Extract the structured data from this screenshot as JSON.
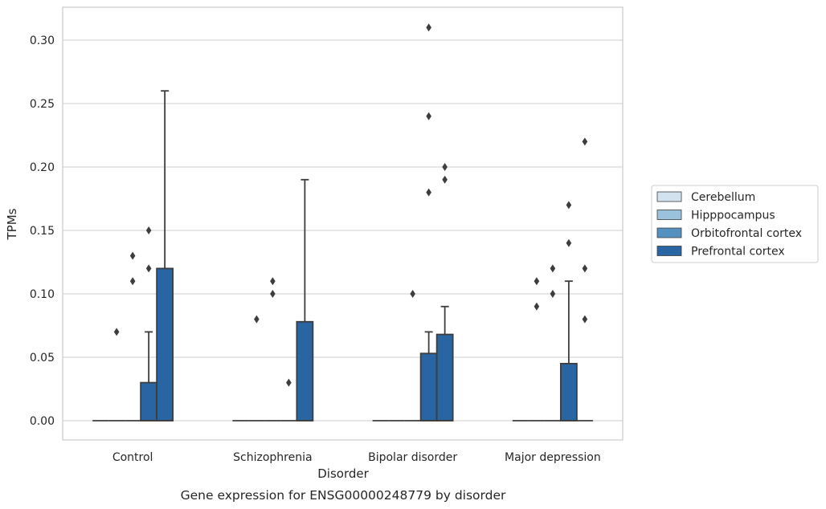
{
  "chart_data": {
    "type": "box",
    "caption": "Gene expression for ENSG00000248779 by disorder",
    "xlabel": "Disorder",
    "ylabel": "TPMs",
    "ylim": [
      -0.015,
      0.325
    ],
    "yticks": [
      "0.00",
      "0.05",
      "0.10",
      "0.15",
      "0.20",
      "0.25",
      "0.30"
    ],
    "grid": true,
    "legend_placement": "right",
    "categories": [
      "Control",
      "Schizophrenia",
      "Bipolar disorder",
      "Major depression"
    ],
    "series": [
      {
        "name": "Cerebellum",
        "color": "#d2e2ef",
        "boxes": [
          {
            "q1": 0,
            "median": 0,
            "q3": 0,
            "whisker_low": 0,
            "whisker_high": 0,
            "outliers": []
          },
          {
            "q1": 0,
            "median": 0,
            "q3": 0,
            "whisker_low": 0,
            "whisker_high": 0,
            "outliers": []
          },
          {
            "q1": 0,
            "median": 0,
            "q3": 0,
            "whisker_low": 0,
            "whisker_high": 0,
            "outliers": []
          },
          {
            "q1": 0,
            "median": 0,
            "q3": 0,
            "whisker_low": 0,
            "whisker_high": 0,
            "outliers": []
          }
        ]
      },
      {
        "name": "Hipppocampus",
        "color": "#9bc2dd",
        "boxes": [
          {
            "q1": 0,
            "median": 0,
            "q3": 0,
            "whisker_low": 0,
            "whisker_high": 0,
            "outliers": [
              0.07
            ]
          },
          {
            "q1": 0,
            "median": 0,
            "q3": 0,
            "whisker_low": 0,
            "whisker_high": 0,
            "outliers": [
              0.08
            ]
          },
          {
            "q1": 0,
            "median": 0,
            "q3": 0,
            "whisker_low": 0,
            "whisker_high": 0,
            "outliers": []
          },
          {
            "q1": 0,
            "median": 0,
            "q3": 0,
            "whisker_low": 0,
            "whisker_high": 0,
            "outliers": [
              0.09,
              0.11
            ]
          }
        ]
      },
      {
        "name": "Orbitofrontal cortex",
        "color": "#5591c0",
        "boxes": [
          {
            "q1": 0,
            "median": 0,
            "q3": 0,
            "whisker_low": 0,
            "whisker_high": 0,
            "outliers": [
              0.11,
              0.13
            ]
          },
          {
            "q1": 0,
            "median": 0,
            "q3": 0,
            "whisker_low": 0,
            "whisker_high": 0,
            "outliers": [
              0.1,
              0.11
            ]
          },
          {
            "q1": 0,
            "median": 0,
            "q3": 0,
            "whisker_low": 0,
            "whisker_high": 0,
            "outliers": [
              0.1
            ]
          },
          {
            "q1": 0,
            "median": 0,
            "q3": 0,
            "whisker_low": 0,
            "whisker_high": 0,
            "outliers": [
              0.1,
              0.12
            ]
          }
        ]
      },
      {
        "name": "Prefrontal cortex",
        "color": "#2965a2",
        "boxes": [
          {
            "q1": 0,
            "median": 0,
            "q3": 0.03,
            "whisker_low": 0,
            "whisker_high": 0.07,
            "outliers": [
              0.12,
              0.15
            ]
          },
          {
            "q1": 0,
            "median": 0,
            "q3": 0,
            "whisker_low": 0,
            "whisker_high": 0,
            "outliers": [
              0.03
            ]
          },
          {
            "q1": 0,
            "median": 0,
            "q3": 0.053,
            "whisker_low": 0,
            "whisker_high": 0.07,
            "outliers": [
              0.18,
              0.24,
              0.31
            ]
          },
          {
            "q1": 0,
            "median": 0,
            "q3": 0.045,
            "whisker_low": 0,
            "whisker_high": 0.11,
            "outliers": [
              0.14,
              0.17
            ]
          }
        ]
      },
      {
        "name": "",
        "color": "#2965a2",
        "boxes": [
          {
            "q1": 0,
            "median": 0,
            "q3": 0.12,
            "whisker_low": 0,
            "whisker_high": 0.26,
            "outliers": []
          },
          {
            "q1": 0,
            "median": 0,
            "q3": 0.078,
            "whisker_low": 0,
            "whisker_high": 0.19,
            "outliers": []
          },
          {
            "q1": 0,
            "median": 0,
            "q3": 0.068,
            "whisker_low": 0,
            "whisker_high": 0.09,
            "outliers": [
              0.19,
              0.2
            ]
          },
          {
            "q1": 0,
            "median": 0,
            "q3": 0,
            "whisker_low": 0,
            "whisker_high": 0,
            "outliers": [
              0.08,
              0.12,
              0.22
            ]
          }
        ]
      }
    ]
  }
}
